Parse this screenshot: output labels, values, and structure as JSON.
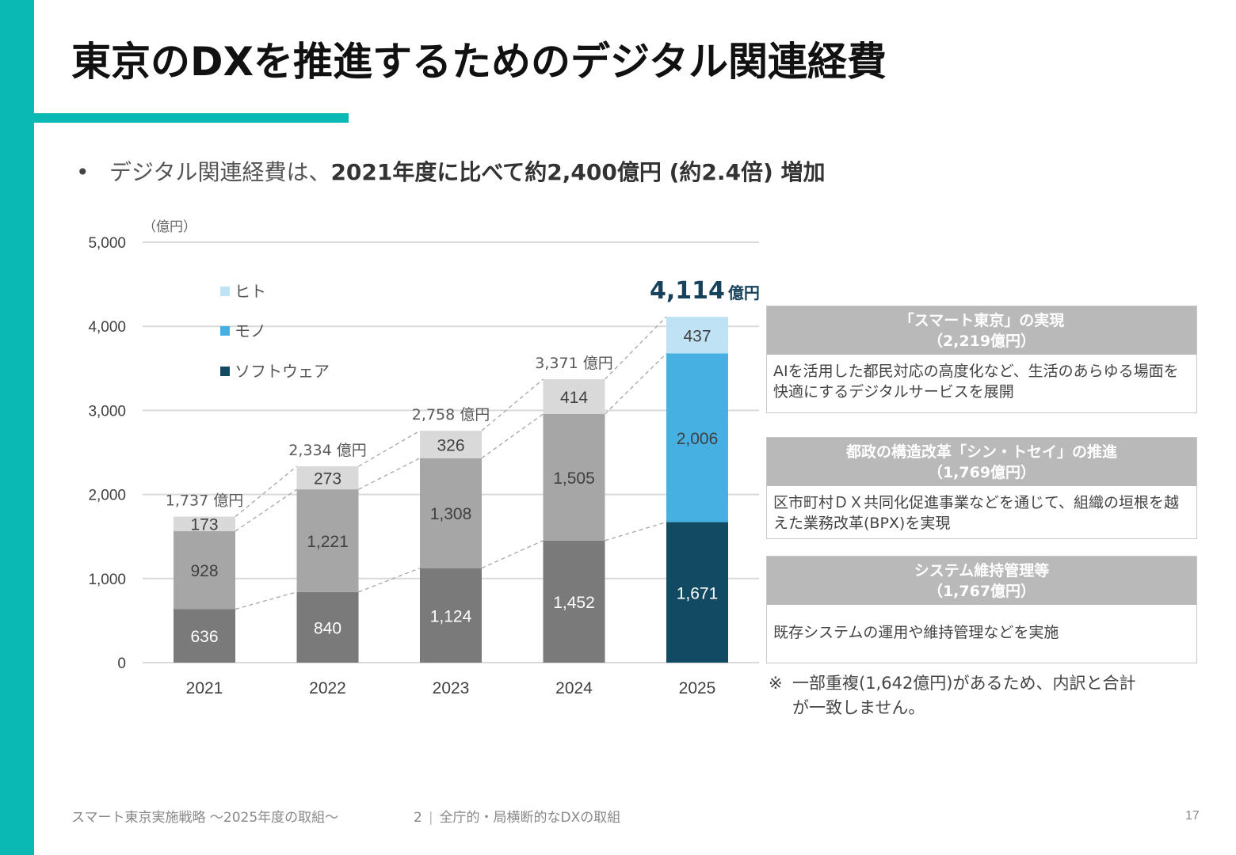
{
  "page": {
    "title": "東京のDXを推進するためのデジタル関連経費",
    "bullet": {
      "plain": "デジタル関連経費は、",
      "bold": "2021年度に比べて約2,400億円 (約2.4倍) 増加"
    },
    "accent_color": "#0ab8b4"
  },
  "chart_data": {
    "type": "bar",
    "stacked": true,
    "unit_label": "（億円）",
    "categories": [
      "2021",
      "2022",
      "2023",
      "2024",
      "2025"
    ],
    "series": [
      {
        "name": "ソフトウェア",
        "values": [
          636,
          840,
          1124,
          1452,
          1671
        ],
        "color_past": "#7a7a7a",
        "color_2025": "#134a63",
        "label_color": "#ffffff"
      },
      {
        "name": "モノ",
        "values": [
          928,
          1221,
          1308,
          1505,
          2006
        ],
        "color_past": "#a6a6a6",
        "color_2025": "#46b0e2",
        "label_color": "#404040"
      },
      {
        "name": "ヒト",
        "values": [
          173,
          273,
          326,
          414,
          437
        ],
        "color_past": "#d9d9d9",
        "color_2025": "#bfe3f5",
        "label_color": "#404040"
      }
    ],
    "value_labels": {
      "ソフトウェア": [
        "636",
        "840",
        "1,124",
        "1,452",
        "1,671"
      ],
      "モノ": [
        "928",
        "1,221",
        "1,308",
        "1,505",
        "2,006"
      ],
      "ヒト": [
        "173",
        "273",
        "326",
        "414",
        "437"
      ]
    },
    "totals": [
      1737,
      2334,
      2758,
      3371,
      4114
    ],
    "total_labels": [
      "1,737 億円",
      "2,334 億円",
      "2,758 億円",
      "3,371 億円"
    ],
    "total_2025": {
      "number": "4,114",
      "unit": "億円",
      "color": "#17425c"
    },
    "legend": [
      {
        "name": "ヒト",
        "color": "#bfe3f5"
      },
      {
        "name": "モノ",
        "color": "#46b0e2"
      },
      {
        "name": "ソフトウェア",
        "color": "#134a63"
      }
    ],
    "legend_position": "upper-left inside plot",
    "ylim": [
      0,
      5000
    ],
    "yticks": [
      0,
      1000,
      2000,
      3000,
      4000,
      5000
    ],
    "ytick_labels": [
      "0",
      "1,000",
      "2,000",
      "3,000",
      "4,000",
      "5,000"
    ],
    "grid": true,
    "connector_lines": "dashed lines linking segment tops between adjacent years",
    "title": "",
    "xlabel": "",
    "ylabel": "（億円）"
  },
  "info_boxes": [
    {
      "title": "「スマート東京」の実現",
      "amount": "（2,219億円）",
      "body": "AIを活用した都民対応の高度化など、生活のあらゆる場面を快適にするデジタルサービスを展開"
    },
    {
      "title": "都政の構造改革「シン・トセイ」の推進",
      "amount": "（1,769億円）",
      "body": "区市町村ＤＸ共同化促進事業などを通じて、組織の垣根を越えた業務改革(BPX)を実現"
    },
    {
      "title": "システム維持管理等",
      "amount": "（1,767億円）",
      "body": "既存システムの運用や維持管理などを実施"
    }
  ],
  "note": {
    "mark": "※",
    "line1": "一部重複(1,642億円)があるため、内訳と合計",
    "line2": "が一致しません。"
  },
  "footer": {
    "document": "スマート東京実施戦略 ～2025年度の取組～",
    "section_number": "2",
    "separator": "|",
    "section_title": "全庁的・局横断的なDXの取組",
    "page_number": "17"
  }
}
